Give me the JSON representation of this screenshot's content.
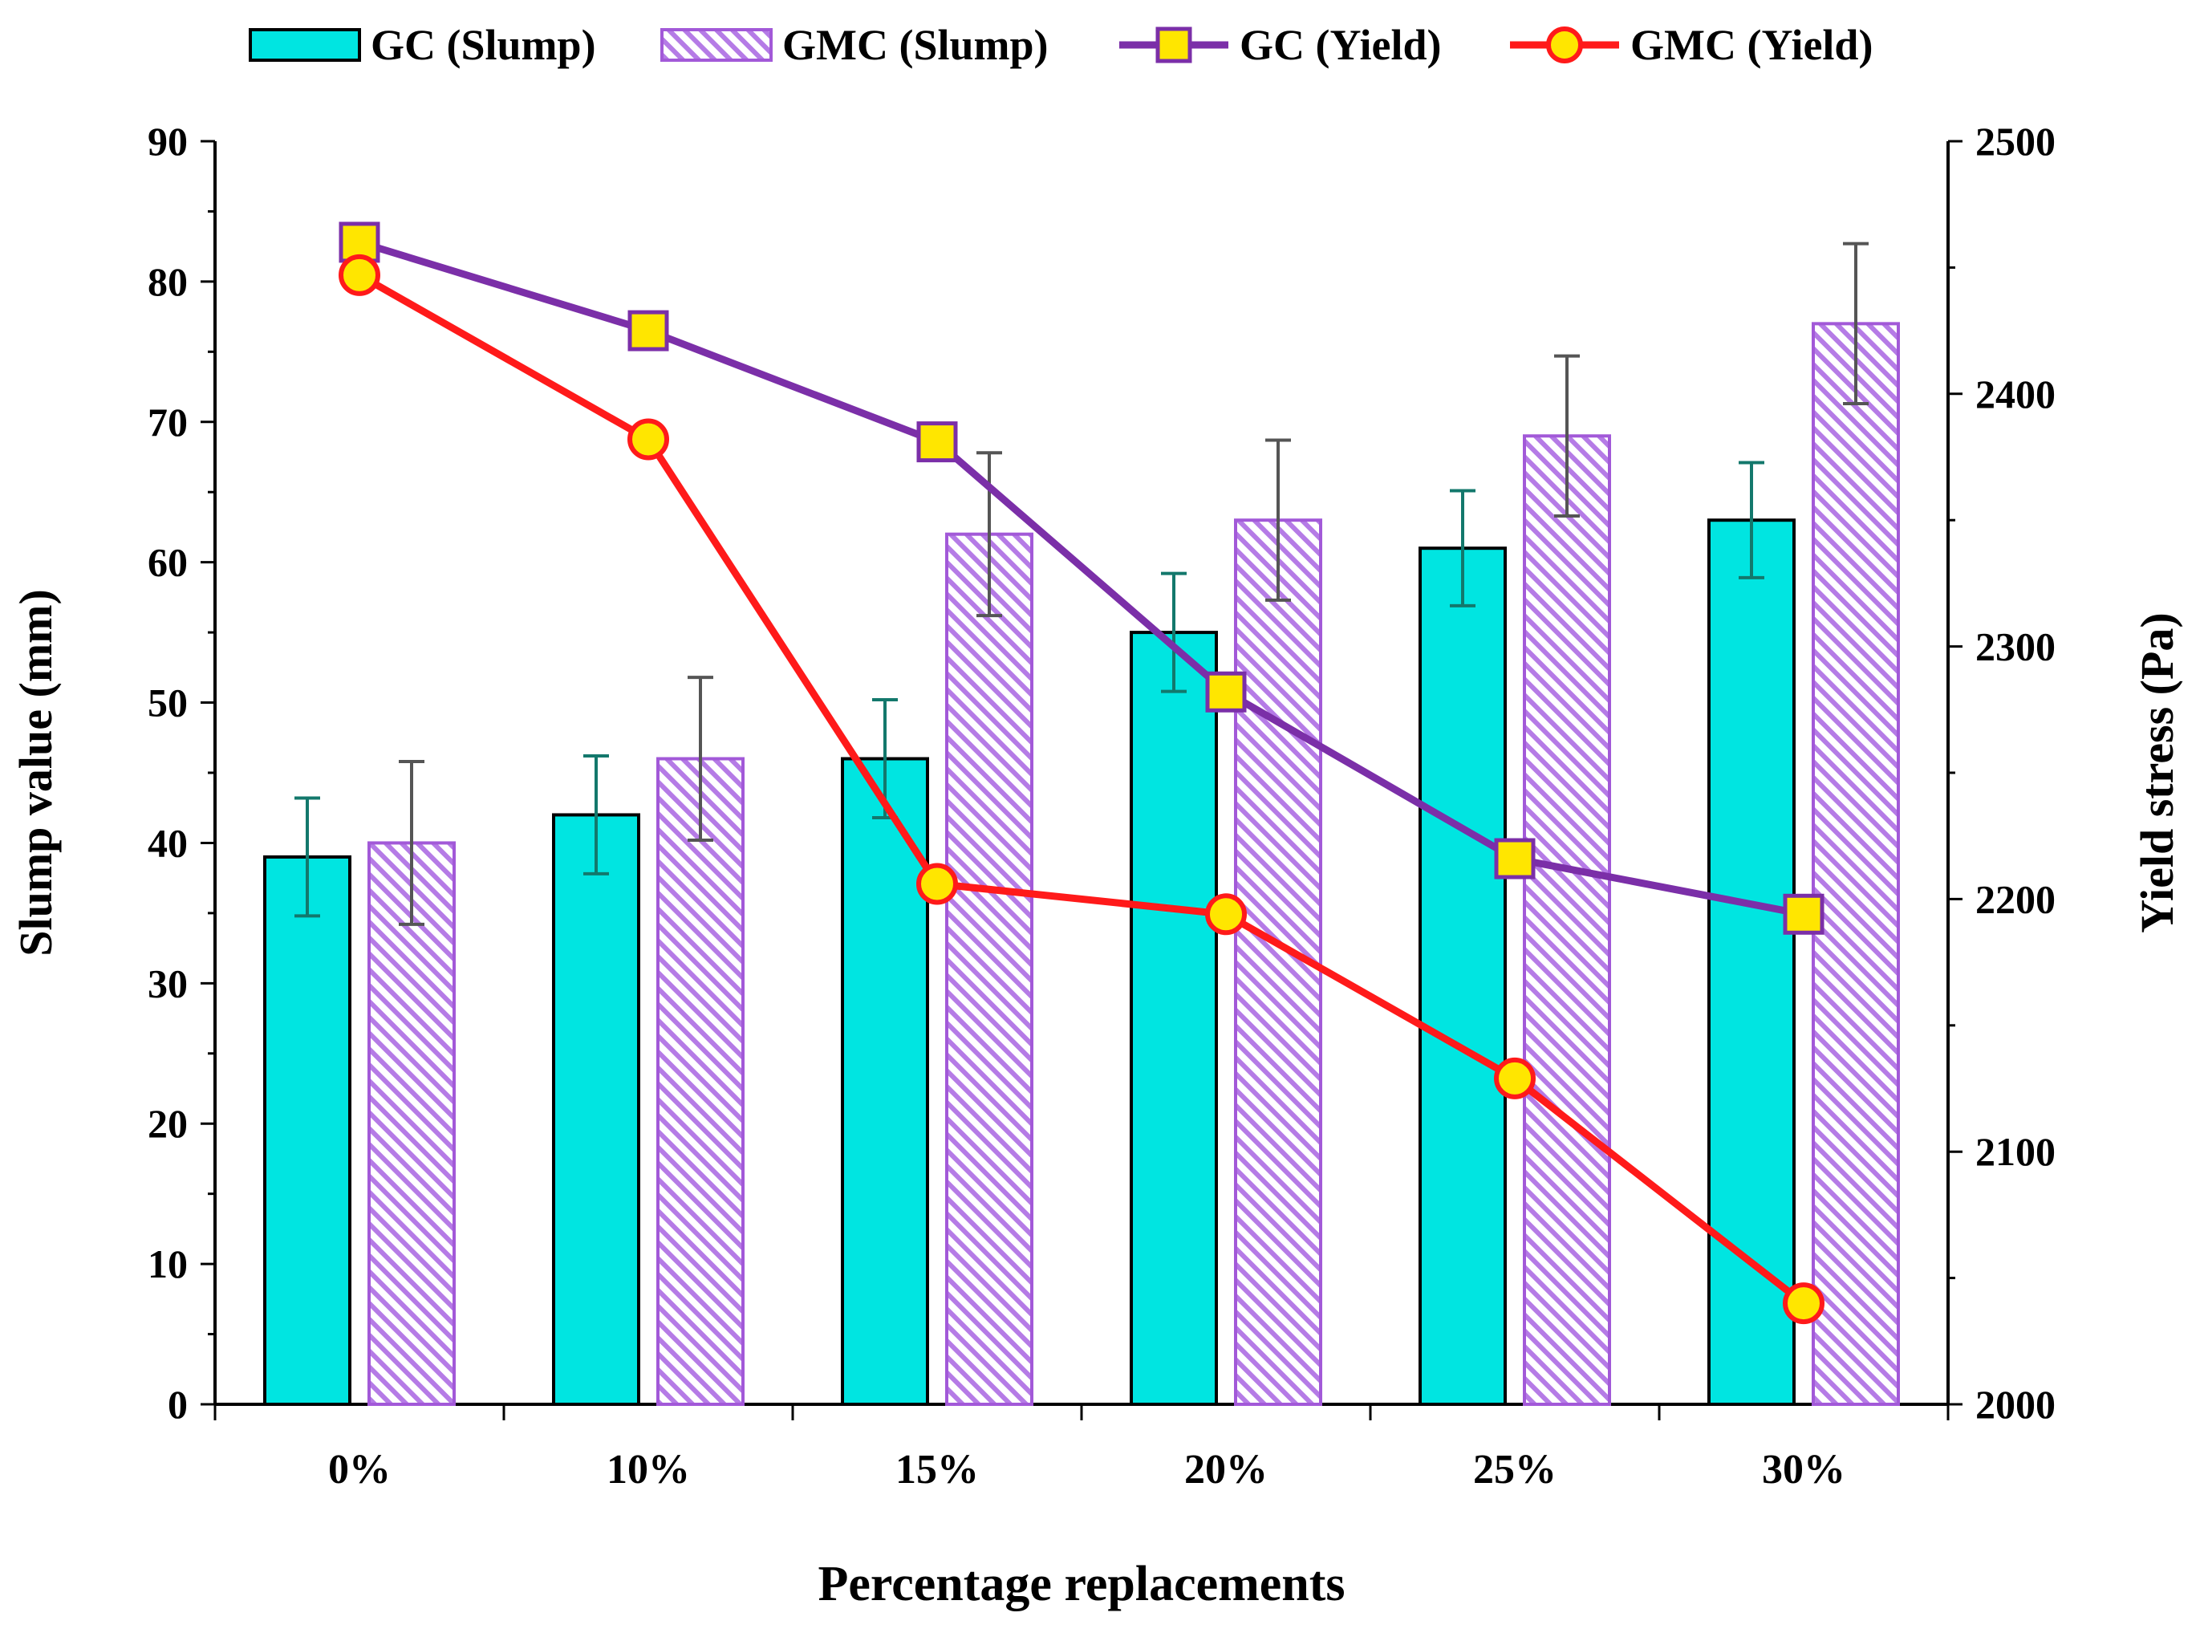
{
  "chart_data": {
    "type": "bar",
    "title": "",
    "xlabel": "Percentage replacements",
    "ylabel": "Slump value (mm)",
    "y2label": "Yield stress (Pa)",
    "categories": [
      "0%",
      "10%",
      "15%",
      "20%",
      "25%",
      "30%"
    ],
    "ylim": [
      0,
      90
    ],
    "yticks": [
      0,
      10,
      20,
      30,
      40,
      50,
      60,
      70,
      80,
      90
    ],
    "y2lim": [
      2000,
      2500
    ],
    "y2ticks": [
      2000,
      2100,
      2200,
      2300,
      2400,
      2500
    ],
    "grid": false,
    "legend_position": "top",
    "bar_series": [
      {
        "name": "GC (Slump)",
        "values": [
          39,
          42,
          46,
          55,
          61,
          63
        ],
        "error": [
          4.2,
          4.2,
          4.2,
          4.2,
          4.1,
          4.1
        ],
        "fill": "#00e5e1",
        "stroke": "#000000",
        "error_color": "#13786c",
        "pattern": "solid"
      },
      {
        "name": "GMC (Slump)",
        "values": [
          40,
          46,
          62,
          63,
          69,
          77
        ],
        "error": [
          5.8,
          5.8,
          5.8,
          5.7,
          5.7,
          5.7
        ],
        "fill": "#ffffff",
        "stroke": "#a259d8",
        "error_color": "#555555",
        "pattern": "hatched"
      }
    ],
    "line_series": [
      {
        "name": "GC (Yield)",
        "axis": "right",
        "values": [
          2460,
          2425,
          2381,
          2282,
          2216,
          2194
        ],
        "color": "#7b2fa8",
        "marker": "square",
        "marker_fill": "#ffe600",
        "marker_stroke": "#7b2fa8"
      },
      {
        "name": "GMC (Yield)",
        "axis": "right",
        "values": [
          2447,
          2382,
          2206,
          2194,
          2129,
          2040
        ],
        "color": "#ff1a1a",
        "marker": "circle",
        "marker_fill": "#ffe600",
        "marker_stroke": "#ff1a1a"
      }
    ]
  }
}
